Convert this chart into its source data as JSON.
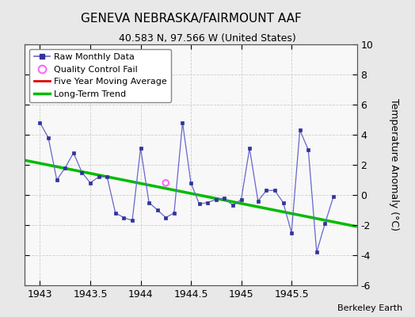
{
  "title": "GENEVA NEBRASKA/FAIRMOUNT AAF",
  "subtitle": "40.583 N, 97.566 W (United States)",
  "ylabel": "Temperature Anomaly (°C)",
  "credit": "Berkeley Earth",
  "xlim": [
    1942.85,
    1946.15
  ],
  "ylim": [
    -6,
    10
  ],
  "yticks": [
    -6,
    -4,
    -2,
    0,
    2,
    4,
    6,
    8,
    10
  ],
  "xticks": [
    1943,
    1943.5,
    1944,
    1944.5,
    1945,
    1945.5
  ],
  "fig_bg": "#e8e8e8",
  "plot_bg": "#f8f8f8",
  "raw_x": [
    1943.0,
    1943.083,
    1943.167,
    1943.25,
    1943.333,
    1943.417,
    1943.5,
    1943.583,
    1943.667,
    1943.75,
    1943.833,
    1943.917,
    1944.0,
    1944.083,
    1944.167,
    1944.25,
    1944.333,
    1944.417,
    1944.5,
    1944.583,
    1944.667,
    1944.75,
    1944.833,
    1944.917,
    1945.0,
    1945.083,
    1945.167,
    1945.25,
    1945.333,
    1945.417,
    1945.5,
    1945.583,
    1945.667,
    1945.75,
    1945.833,
    1945.917
  ],
  "raw_y": [
    4.8,
    3.8,
    1.0,
    1.8,
    2.8,
    1.5,
    0.8,
    1.2,
    1.2,
    -1.2,
    -1.5,
    -1.7,
    3.1,
    -0.5,
    -1.0,
    -1.5,
    -1.2,
    4.8,
    0.8,
    -0.6,
    -0.5,
    -0.3,
    -0.2,
    -0.7,
    -0.3,
    3.1,
    -0.4,
    0.3,
    0.3,
    -0.5,
    -2.5,
    4.3,
    3.0,
    -3.8,
    -1.9,
    -0.1
  ],
  "qc_fail_x": [
    1944.25
  ],
  "qc_fail_y": [
    0.8
  ],
  "trend_x": [
    1942.85,
    1946.15
  ],
  "trend_y": [
    2.3,
    -2.1
  ],
  "line_color": "#6666cc",
  "marker_color": "#333399",
  "qc_color": "#ff66ff",
  "trend_color": "#00bb00",
  "ma_color": "#dd0000",
  "grid_color": "#cccccc",
  "title_fontsize": 11,
  "subtitle_fontsize": 9,
  "tick_fontsize": 9,
  "ylabel_fontsize": 9,
  "legend_fontsize": 8,
  "credit_fontsize": 8
}
